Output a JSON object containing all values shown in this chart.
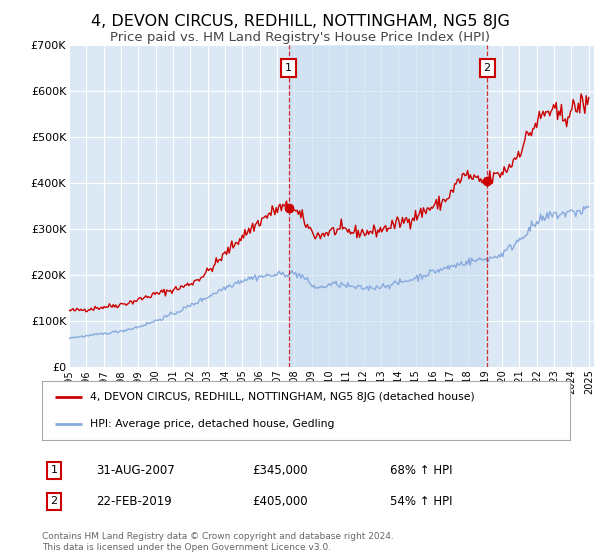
{
  "title": "4, DEVON CIRCUS, REDHILL, NOTTINGHAM, NG5 8JG",
  "subtitle": "Price paid vs. HM Land Registry's House Price Index (HPI)",
  "title_fontsize": 11.5,
  "subtitle_fontsize": 9.5,
  "ylim": [
    0,
    700000
  ],
  "yticks": [
    0,
    100000,
    200000,
    300000,
    400000,
    500000,
    600000,
    700000
  ],
  "ytick_labels": [
    "£0",
    "£100K",
    "£200K",
    "£300K",
    "£400K",
    "£500K",
    "£600K",
    "£700K"
  ],
  "background_color": "#ffffff",
  "plot_bg_color": "#dce9f5",
  "plot_bg_highlight": "#c8ddf0",
  "grid_color": "#ffffff",
  "property_color": "#cc0000",
  "hpi_color": "#88aadd",
  "legend_property": "4, DEVON CIRCUS, REDHILL, NOTTINGHAM, NG5 8JG (detached house)",
  "legend_hpi": "HPI: Average price, detached house, Gedling",
  "sale1_date": "31-AUG-2007",
  "sale1_price": "£345,000",
  "sale1_hpi": "68% ↑ HPI",
  "sale1_x": 2007.67,
  "sale1_y": 345000,
  "sale2_date": "22-FEB-2019",
  "sale2_price": "£405,000",
  "sale2_hpi": "54% ↑ HPI",
  "sale2_x": 2019.13,
  "sale2_y": 405000,
  "footer": "Contains HM Land Registry data © Crown copyright and database right 2024.\nThis data is licensed under the Open Government Licence v3.0.",
  "xlim": [
    1995.0,
    2025.3
  ],
  "years": [
    1995,
    1996,
    1997,
    1998,
    1999,
    2000,
    2001,
    2002,
    2003,
    2004,
    2005,
    2006,
    2007,
    2008,
    2009,
    2010,
    2011,
    2012,
    2013,
    2014,
    2015,
    2016,
    2017,
    2018,
    2019,
    2020,
    2021,
    2022,
    2023,
    2024,
    2025
  ]
}
